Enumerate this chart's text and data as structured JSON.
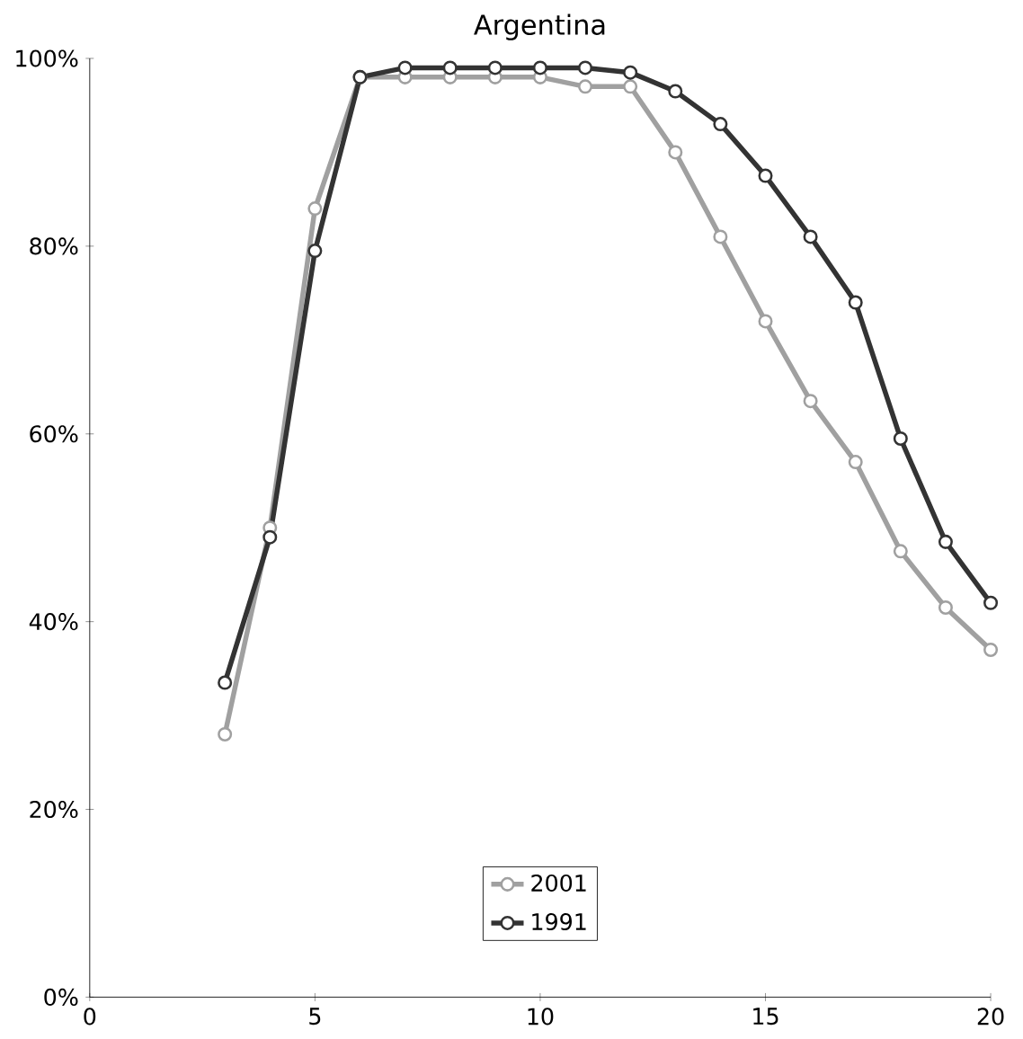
{
  "chart_data": {
    "type": "line",
    "title": "Argentina",
    "x": [
      3,
      4,
      5,
      6,
      7,
      8,
      9,
      10,
      11,
      12,
      13,
      14,
      15,
      16,
      17,
      18,
      19,
      20
    ],
    "series": [
      {
        "name": "2001",
        "color": "#a0a0a0",
        "values": [
          28,
          50,
          84,
          98,
          98,
          98,
          98,
          98,
          97,
          97,
          90,
          81,
          72,
          63.5,
          57,
          47.5,
          41.5,
          37
        ]
      },
      {
        "name": "1991",
        "color": "#333333",
        "values": [
          33.5,
          49,
          79.5,
          98,
          99,
          99,
          99,
          99,
          99,
          98.5,
          96.5,
          93,
          87.5,
          81,
          74,
          59.5,
          48.5,
          42
        ]
      }
    ],
    "xlim": [
      0,
      20
    ],
    "ylim": [
      0,
      100
    ],
    "xticks": [
      0,
      5,
      10,
      15,
      20
    ],
    "yticks": [
      {
        "value": 0,
        "label": "0%"
      },
      {
        "value": 20,
        "label": "20%"
      },
      {
        "value": 40,
        "label": "40%"
      },
      {
        "value": 60,
        "label": "60%"
      },
      {
        "value": 80,
        "label": "80%"
      },
      {
        "value": 100,
        "label": "100%"
      }
    ],
    "legend": "bottom",
    "marker": "circle",
    "line_style": "solid",
    "grid": false
  }
}
